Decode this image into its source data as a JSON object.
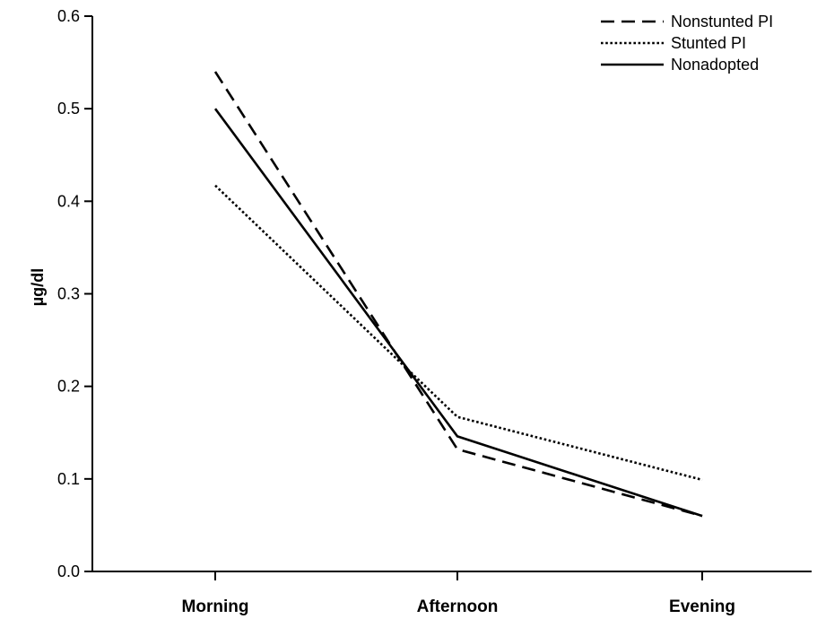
{
  "chart_data": {
    "type": "line",
    "categories": [
      "Morning",
      "Afternoon",
      "Evening"
    ],
    "ylabel": "µg/dl",
    "ylim": [
      0,
      0.6
    ],
    "yticks": [
      "0.0",
      "0.1",
      "0.2",
      "0.3",
      "0.4",
      "0.5",
      "0.6"
    ],
    "grid": false,
    "legend_position": "top-right",
    "series": [
      {
        "name": "Nonstunted PI",
        "style": "dashed",
        "values": [
          0.54,
          0.132,
          0.06
        ]
      },
      {
        "name": "Stunted PI",
        "style": "dotted",
        "values": [
          0.417,
          0.167,
          0.099
        ]
      },
      {
        "name": "Nonadopted",
        "style": "solid",
        "values": [
          0.5,
          0.146,
          0.06
        ]
      }
    ]
  }
}
